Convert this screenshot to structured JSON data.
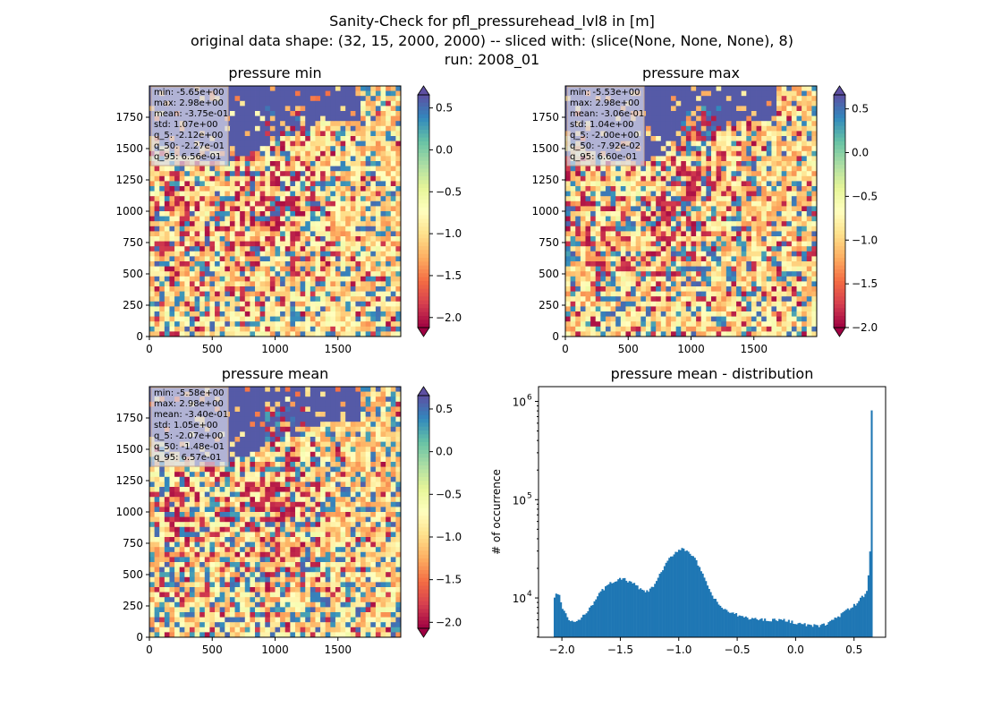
{
  "figure": {
    "title_lines": [
      "Sanity-Check for pfl_pressurehead_lvl8 in [m]",
      "original data shape: (32, 15, 2000, 2000) -- sliced with: (slice(None, None, None), 8)",
      "run: 2008_01"
    ]
  },
  "chart_data": [
    {
      "type": "heatmap",
      "title": "pressure min",
      "xlim": [
        0,
        2000
      ],
      "ylim": [
        0,
        2000
      ],
      "xticks": [
        0,
        500,
        1000,
        1500
      ],
      "yticks": [
        0,
        250,
        500,
        750,
        1000,
        1250,
        1500,
        1750
      ],
      "colorbar": {
        "cmap": "Spectral",
        "extend": "both",
        "vmin": -2.12,
        "vmax": 0.656,
        "ticks": [
          "0.5",
          "0.0",
          "−0.5",
          "−1.0",
          "−1.5",
          "−2.0"
        ],
        "tick_values": [
          0.5,
          0.0,
          -0.5,
          -1.0,
          -1.5,
          -2.0
        ]
      },
      "stats": [
        "min: -5.65e+00",
        "max: 2.98e+00",
        "mean: -3.75e-01",
        "std: 1.07e+00",
        "q_5: -2.12e+00",
        "q_50: -2.27e-01",
        "q_95: 6.56e-01"
      ]
    },
    {
      "type": "heatmap",
      "title": "pressure max",
      "xlim": [
        0,
        2000
      ],
      "ylim": [
        0,
        2000
      ],
      "xticks": [
        0,
        500,
        1000,
        1500
      ],
      "yticks": [
        0,
        250,
        500,
        750,
        1000,
        1250,
        1500,
        1750
      ],
      "colorbar": {
        "cmap": "Spectral",
        "extend": "both",
        "vmin": -2.0,
        "vmax": 0.66,
        "ticks": [
          "0.5",
          "0.0",
          "−0.5",
          "−1.0",
          "−1.5",
          "−2.0"
        ],
        "tick_values": [
          0.5,
          0.0,
          -0.5,
          -1.0,
          -1.5,
          -2.0
        ]
      },
      "stats": [
        "min: -5.53e+00",
        "max: 2.98e+00",
        "mean: -3.06e-01",
        "std: 1.04e+00",
        "q_5: -2.00e+00",
        "q_50: -7.92e-02",
        "q_95: 6.60e-01"
      ]
    },
    {
      "type": "heatmap",
      "title": "pressure mean",
      "xlim": [
        0,
        2000
      ],
      "ylim": [
        0,
        2000
      ],
      "xticks": [
        0,
        500,
        1000,
        1500
      ],
      "yticks": [
        0,
        250,
        500,
        750,
        1000,
        1250,
        1500,
        1750
      ],
      "colorbar": {
        "cmap": "Spectral",
        "extend": "both",
        "vmin": -2.07,
        "vmax": 0.657,
        "ticks": [
          "0.5",
          "0.0",
          "−0.5",
          "−1.0",
          "−1.5",
          "−2.0"
        ],
        "tick_values": [
          0.5,
          0.0,
          -0.5,
          -1.0,
          -1.5,
          -2.0
        ]
      },
      "stats": [
        "min: -5.58e+00",
        "max: 2.98e+00",
        "mean: -3.40e-01",
        "std: 1.05e+00",
        "q_5: -2.07e+00",
        "q_50: -1.48e-01",
        "q_95: 6.57e-01"
      ]
    },
    {
      "type": "bar",
      "title": "pressure mean - distribution",
      "ylabel": "# of occurrence",
      "xlim": [
        -2.2,
        0.77
      ],
      "ylim_log10": [
        3.6,
        6.15
      ],
      "yscale": "log",
      "xticks": [
        -2.0,
        -1.5,
        -1.0,
        -0.5,
        0.0,
        0.5
      ],
      "xtick_labels": [
        "−2.0",
        "−1.5",
        "−1.0",
        "−0.5",
        "0.0",
        "0.5"
      ],
      "yticks": [
        10000,
        100000,
        1000000
      ],
      "ytick_labels": [
        "10",
        "10",
        "10"
      ],
      "ytick_exponents": [
        "4",
        "5",
        "6"
      ],
      "bar_color": "#1f77b4",
      "bins": {
        "start": -2.07,
        "end": 0.657,
        "count": 200
      },
      "profile": [
        [
          -2.07,
          9000
        ],
        [
          -2.05,
          11500
        ],
        [
          -2.02,
          10500
        ],
        [
          -2.0,
          8000
        ],
        [
          -1.97,
          6800
        ],
        [
          -1.93,
          5800
        ],
        [
          -1.88,
          5700
        ],
        [
          -1.83,
          6200
        ],
        [
          -1.78,
          7500
        ],
        [
          -1.73,
          9000
        ],
        [
          -1.68,
          11000
        ],
        [
          -1.63,
          12800
        ],
        [
          -1.57,
          14500
        ],
        [
          -1.52,
          15500
        ],
        [
          -1.47,
          15500
        ],
        [
          -1.42,
          14500
        ],
        [
          -1.37,
          13500
        ],
        [
          -1.32,
          12000
        ],
        [
          -1.27,
          11500
        ],
        [
          -1.22,
          13000
        ],
        [
          -1.17,
          16500
        ],
        [
          -1.12,
          21000
        ],
        [
          -1.07,
          26000
        ],
        [
          -1.02,
          30000
        ],
        [
          -0.97,
          32000
        ],
        [
          -0.92,
          30000
        ],
        [
          -0.87,
          26000
        ],
        [
          -0.82,
          20000
        ],
        [
          -0.77,
          14500
        ],
        [
          -0.72,
          11000
        ],
        [
          -0.67,
          8800
        ],
        [
          -0.62,
          7800
        ],
        [
          -0.55,
          7000
        ],
        [
          -0.45,
          6400
        ],
        [
          -0.35,
          6100
        ],
        [
          -0.25,
          6000
        ],
        [
          -0.15,
          6000
        ],
        [
          -0.05,
          5800
        ],
        [
          0.05,
          5400
        ],
        [
          0.15,
          5200
        ],
        [
          0.22,
          5200
        ],
        [
          0.28,
          5600
        ],
        [
          0.35,
          6300
        ],
        [
          0.42,
          7200
        ],
        [
          0.48,
          8000
        ],
        [
          0.53,
          9000
        ],
        [
          0.58,
          10500
        ],
        [
          0.61,
          12000
        ],
        [
          0.625,
          18000
        ],
        [
          0.635,
          23000
        ],
        [
          0.645,
          120000
        ],
        [
          0.651,
          1100000
        ],
        [
          0.657,
          300000
        ]
      ]
    }
  ]
}
